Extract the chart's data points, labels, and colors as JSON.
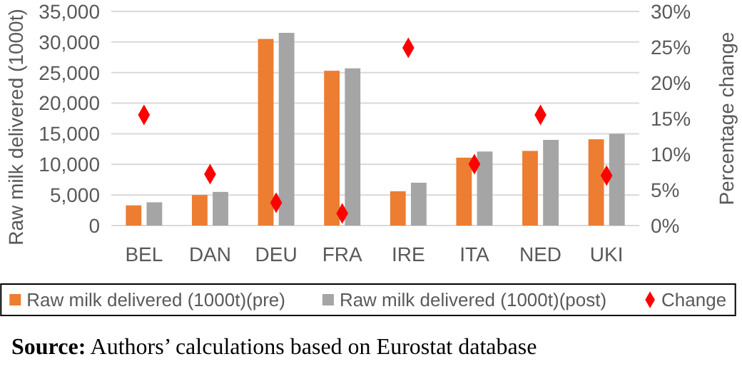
{
  "chart_data": {
    "type": "bar",
    "categories": [
      "BEL",
      "DAN",
      "DEU",
      "FRA",
      "IRE",
      "ITA",
      "NED",
      "UKI"
    ],
    "series": [
      {
        "name": "Raw milk delivered (1000t)(pre)",
        "color": "#ed7d31",
        "values": [
          3300,
          5000,
          30500,
          25300,
          5600,
          11100,
          12200,
          14100
        ]
      },
      {
        "name": "Raw milk delivered (1000t)(post)",
        "color": "#a5a5a5",
        "values": [
          3800,
          5500,
          31500,
          25700,
          7000,
          12100,
          14000,
          15000
        ]
      },
      {
        "name": "Change",
        "type": "scatter",
        "axis": "y2",
        "marker": "diamond",
        "color": "#ff0000",
        "values": [
          15.5,
          7.2,
          3.2,
          1.7,
          24.9,
          8.6,
          15.5,
          7.0
        ]
      }
    ],
    "ylabel": "Raw milk delivered (1000t)",
    "y2label": "Percentage change",
    "ylim": [
      0,
      35000
    ],
    "yticks": [
      {
        "value": 0,
        "label": "0"
      },
      {
        "value": 5000,
        "label": "5,000"
      },
      {
        "value": 10000,
        "label": "10,000"
      },
      {
        "value": 15000,
        "label": "15,000"
      },
      {
        "value": 20000,
        "label": "20,000"
      },
      {
        "value": 25000,
        "label": "25,000"
      },
      {
        "value": 30000,
        "label": "30,000"
      },
      {
        "value": 35000,
        "label": "35,000"
      }
    ],
    "y2lim": [
      0,
      30
    ],
    "y2ticks": [
      {
        "value": 0,
        "label": "0%"
      },
      {
        "value": 5,
        "label": "5%"
      },
      {
        "value": 10,
        "label": "10%"
      },
      {
        "value": 15,
        "label": "15%"
      },
      {
        "value": 20,
        "label": "20%"
      },
      {
        "value": 25,
        "label": "25%"
      },
      {
        "value": 30,
        "label": "30%"
      }
    ],
    "grid": "y",
    "legend": "bottom",
    "annotations": [
      "Source: Authors’ calculations based on Eurostat database"
    ]
  }
}
